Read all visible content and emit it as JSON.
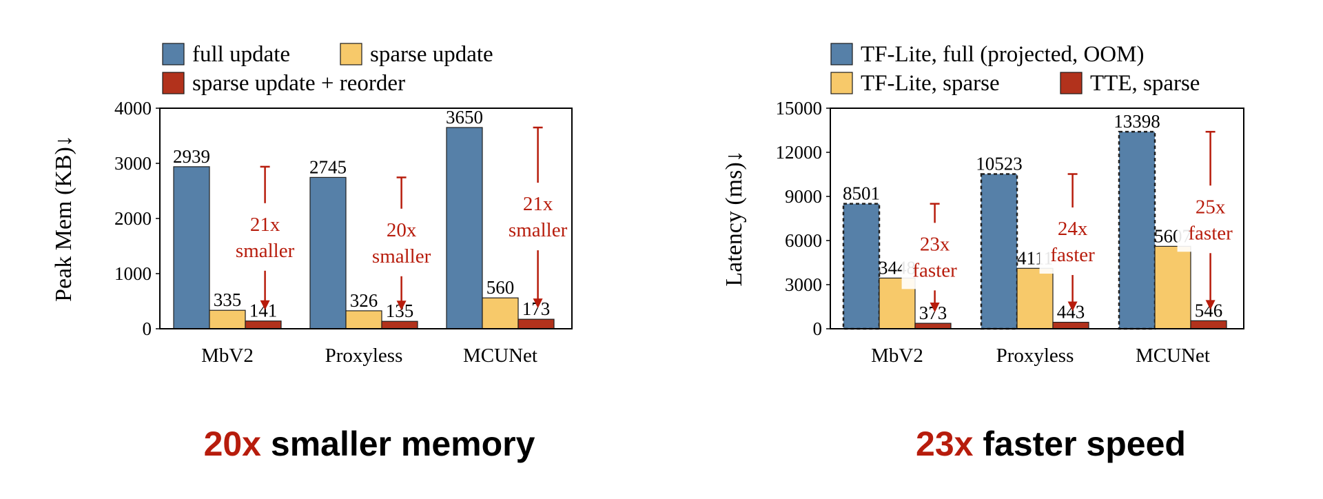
{
  "chart_data": [
    {
      "type": "bar",
      "categories": [
        "MbV2",
        "Proxyless",
        "MCUNet"
      ],
      "series": [
        {
          "name": "full update",
          "values": [
            2939,
            2745,
            3650
          ],
          "color": "#5680a8",
          "dashed": false
        },
        {
          "name": "sparse update",
          "values": [
            335,
            326,
            560
          ],
          "color": "#f7c96a",
          "dashed": false
        },
        {
          "name": "sparse update + reorder",
          "values": [
            141,
            135,
            173
          ],
          "color": "#b2321c",
          "dashed": false
        }
      ],
      "value_labels": [
        [
          "2939",
          "2745",
          "3650"
        ],
        [
          "335",
          "326",
          "560"
        ],
        [
          "141",
          "135",
          "173"
        ]
      ],
      "ylabel": "Peak Mem (KB)↓",
      "ylim": [
        0,
        4000
      ],
      "yticks": [
        0,
        1000,
        2000,
        3000,
        4000
      ],
      "ytick_labels": [
        "0",
        "1000",
        "2000",
        "3000",
        "4000"
      ],
      "legend_rows": [
        [
          "full update",
          "sparse update"
        ],
        [
          "sparse update + reorder"
        ]
      ],
      "legend_placement": "top",
      "grid": false,
      "annotations": [
        {
          "category": "MbV2",
          "from": 2939,
          "to": 141,
          "line1": "21x",
          "line2": "smaller"
        },
        {
          "category": "Proxyless",
          "from": 2745,
          "to": 135,
          "line1": "20x",
          "line2": "smaller"
        },
        {
          "category": "MCUNet",
          "from": 3650,
          "to": 173,
          "line1": "21x",
          "line2": "smaller"
        }
      ],
      "annotation_color": "#b71c0c"
    },
    {
      "type": "bar",
      "categories": [
        "MbV2",
        "Proxyless",
        "MCUNet"
      ],
      "series": [
        {
          "name": "TF-Lite, full (projected, OOM)",
          "values": [
            8501,
            10523,
            13398
          ],
          "color": "#5680a8",
          "dashed": true
        },
        {
          "name": "TF-Lite, sparse",
          "values": [
            3448,
            4111,
            5607
          ],
          "color": "#f7c96a",
          "dashed": false
        },
        {
          "name": "TTE, sparse",
          "values": [
            373,
            443,
            546
          ],
          "color": "#b2321c",
          "dashed": false
        }
      ],
      "value_labels": [
        [
          "8501",
          "10523",
          "13398"
        ],
        [
          "3448",
          "4111",
          "5607"
        ],
        [
          "373",
          "443",
          "546"
        ]
      ],
      "ylabel": "Latency (ms)↓",
      "ylim": [
        0,
        15000
      ],
      "yticks": [
        0,
        3000,
        6000,
        9000,
        12000,
        15000
      ],
      "ytick_labels": [
        "0",
        "3000",
        "6000",
        "9000",
        "12000",
        "15000"
      ],
      "legend_rows": [
        [
          "TF-Lite, full (projected, OOM)"
        ],
        [
          "TF-Lite, sparse",
          "TTE, sparse"
        ]
      ],
      "legend_placement": "top",
      "grid": false,
      "annotations": [
        {
          "category": "MbV2",
          "from": 8501,
          "to": 373,
          "line1": "23x",
          "line2": "faster"
        },
        {
          "category": "Proxyless",
          "from": 10523,
          "to": 443,
          "line1": "24x",
          "line2": "faster"
        },
        {
          "category": "MCUNet",
          "from": 13398,
          "to": 546,
          "line1": "25x",
          "line2": "faster"
        }
      ],
      "annotation_color": "#b71c0c"
    }
  ],
  "captions": [
    {
      "highlight": "20x",
      "rest": " smaller memory"
    },
    {
      "highlight": "23x",
      "rest": " faster speed"
    }
  ]
}
